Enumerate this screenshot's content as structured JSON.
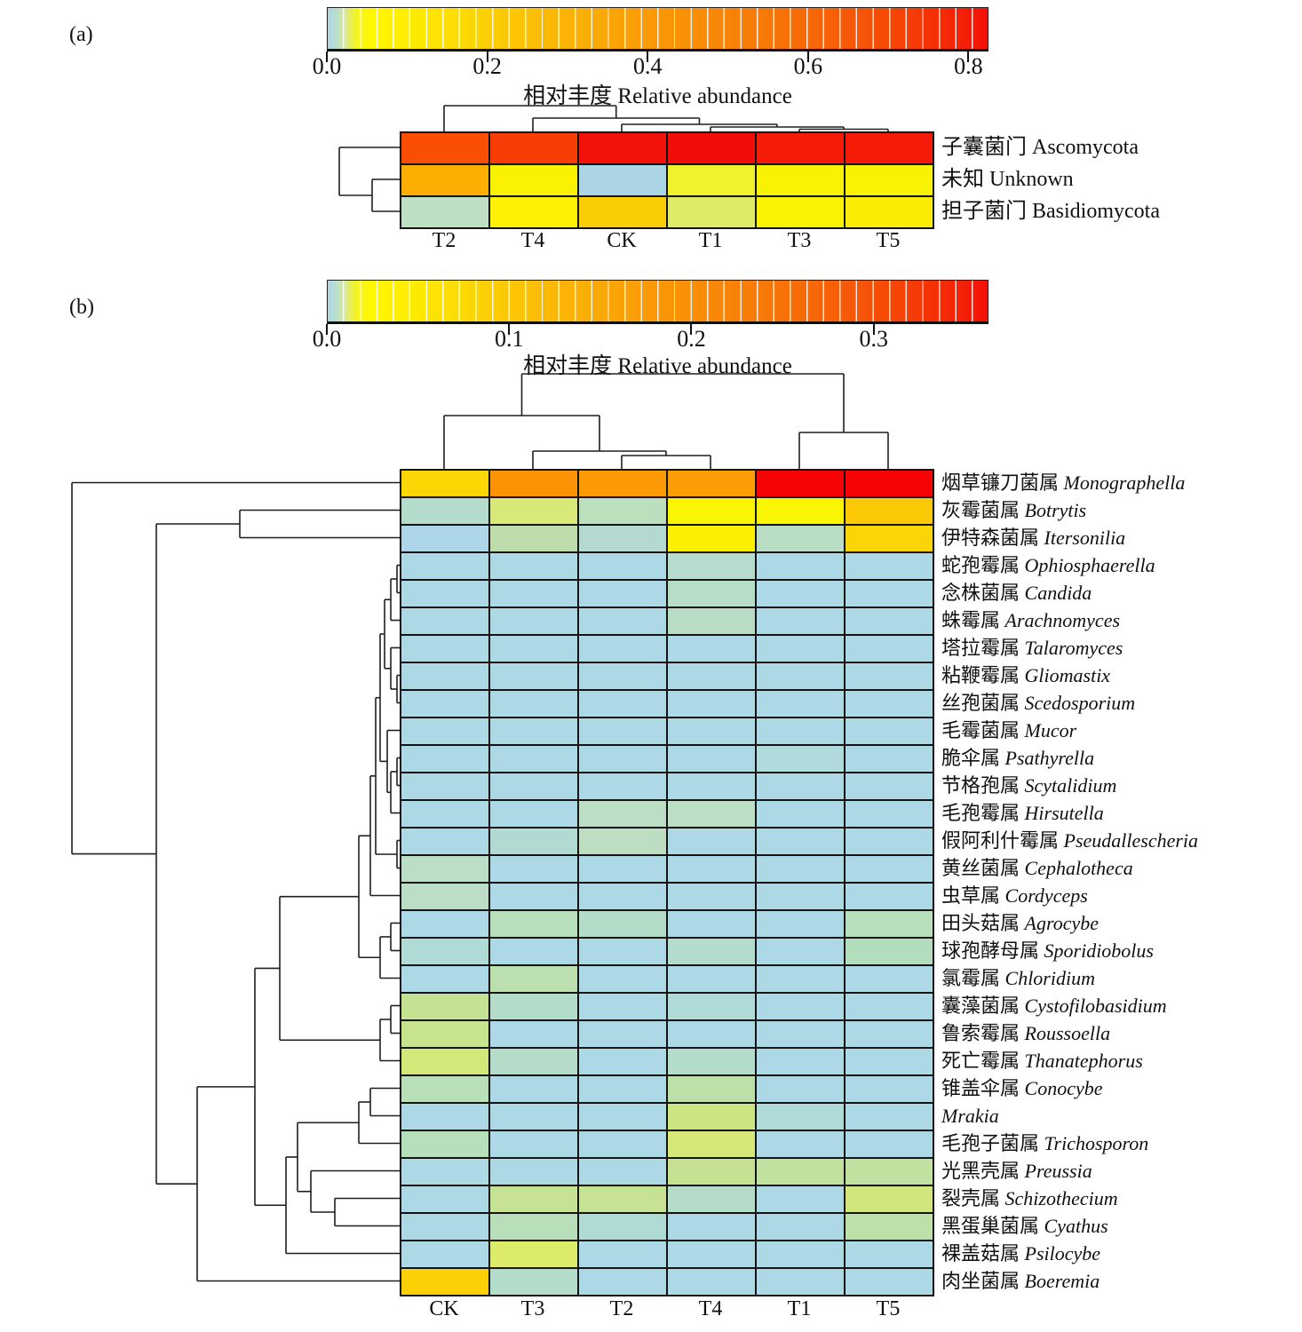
{
  "figure": {
    "colorbar_title": "相对丰度 Relative abundance"
  },
  "chart_data": [
    {
      "id": "a",
      "type": "heatmap",
      "panel_label": "(a)",
      "title": "相对丰度 Relative abundance",
      "legend_position": "top",
      "grid": false,
      "colorbar": {
        "ticks": [
          "0.0",
          "0.2",
          "0.4",
          "0.6",
          "0.8"
        ],
        "tick_values": [
          0,
          0.2,
          0.4,
          0.6,
          0.8
        ],
        "vmin": 0,
        "vmax": 0.825,
        "gradient": [
          "#A9D6E5",
          "#FFF800",
          "#FCD005",
          "#FAA307",
          "#F87D08",
          "#F41106"
        ]
      },
      "columns": [
        "T2",
        "T4",
        "CK",
        "T1",
        "T3",
        "T5"
      ],
      "rows": [
        {
          "zh": "子囊菌门",
          "latin": "Ascomycota",
          "italic": false
        },
        {
          "zh": "未知",
          "latin": "Unknown",
          "italic": false
        },
        {
          "zh": "担子菌门",
          "latin": "Basidiomycota",
          "italic": false
        }
      ],
      "values": [
        [
          0.67,
          0.7,
          0.8,
          0.81,
          0.78,
          0.78
        ],
        [
          0.33,
          0.12,
          0.0,
          0.09,
          0.12,
          0.12
        ],
        [
          0.01,
          0.12,
          0.25,
          0.06,
          0.12,
          0.13
        ]
      ],
      "cell_colors": [
        [
          "#FA4E04",
          "#F93D06",
          "#F31207",
          "#F20D08",
          "#F41C06",
          "#F41C06"
        ],
        [
          "#FCAE03",
          "#FBF201",
          "#ABD5E5",
          "#EFF22D",
          "#FAF203",
          "#FAF203"
        ],
        [
          "#BEDFC2",
          "#FCF201",
          "#FBCD04",
          "#DFEA69",
          "#FBF203",
          "#FBEC06"
        ]
      ]
    },
    {
      "id": "b",
      "type": "heatmap",
      "panel_label": "(b)",
      "title": "相对丰度 Relative abundance",
      "legend_position": "top",
      "grid": false,
      "colorbar": {
        "ticks": [
          "0.0",
          "0.1",
          "0.2",
          "0.3"
        ],
        "tick_values": [
          0,
          0.1,
          0.2,
          0.3
        ],
        "vmin": 0,
        "vmax": 0.363,
        "gradient": [
          "#A9D6E5",
          "#FFF800",
          "#FCD005",
          "#FAA307",
          "#F87D08",
          "#F41106"
        ]
      },
      "columns": [
        "CK",
        "T3",
        "T2",
        "T4",
        "T1",
        "T5"
      ],
      "rows": [
        {
          "zh": "烟草镰刀菌属",
          "latin": "Monographella",
          "italic": true
        },
        {
          "zh": "灰霉菌属",
          "latin": "Botrytis",
          "italic": true
        },
        {
          "zh": "伊特森菌属",
          "latin": "Itersonilia",
          "italic": true
        },
        {
          "zh": "蛇孢霉属",
          "latin": "Ophiosphaerella",
          "italic": true
        },
        {
          "zh": "念株菌属",
          "latin": "Candida",
          "italic": true
        },
        {
          "zh": "蛛霉属",
          "latin": "Arachnomyces",
          "italic": true
        },
        {
          "zh": "塔拉霉属",
          "latin": "Talaromyces",
          "italic": true
        },
        {
          "zh": "粘鞭霉属",
          "latin": "Gliomastix",
          "italic": true
        },
        {
          "zh": "丝孢菌属",
          "latin": "Scedosporium",
          "italic": true
        },
        {
          "zh": "毛霉菌属",
          "latin": "Mucor",
          "italic": true
        },
        {
          "zh": "脆伞属",
          "latin": "Psathyrella",
          "italic": true
        },
        {
          "zh": "节格孢属",
          "latin": "Scytalidium",
          "italic": true
        },
        {
          "zh": "毛孢霉属",
          "latin": "Hirsutella",
          "italic": true
        },
        {
          "zh": "假阿利什霉属",
          "latin": "Pseudallescheria",
          "italic": true
        },
        {
          "zh": "黄丝菌属",
          "latin": "Cephalotheca",
          "italic": true
        },
        {
          "zh": "虫草属",
          "latin": "Cordyceps",
          "italic": true
        },
        {
          "zh": "田头菇属",
          "latin": "Agrocybe",
          "italic": true
        },
        {
          "zh": "球孢酵母属",
          "latin": "Sporidiobolus",
          "italic": true
        },
        {
          "zh": "氯霉属",
          "latin": "Chloridium",
          "italic": true
        },
        {
          "zh": "囊藻菌属",
          "latin": "Cystofilobasidium",
          "italic": true
        },
        {
          "zh": "鲁索霉属",
          "latin": "Roussoella",
          "italic": true
        },
        {
          "zh": "死亡霉属",
          "latin": "Thanatephorus",
          "italic": true
        },
        {
          "zh": "锥盖伞属",
          "latin": "Conocybe",
          "italic": true
        },
        {
          "zh": "",
          "latin": "Mrakia",
          "italic": true
        },
        {
          "zh": "毛孢子菌属",
          "latin": "Trichosporon",
          "italic": true
        },
        {
          "zh": "光黑壳属",
          "latin": "Preussia",
          "italic": true
        },
        {
          "zh": "裂壳属",
          "latin": "Schizothecium",
          "italic": true
        },
        {
          "zh": "黑蛋巢菌属",
          "latin": "Cyathus",
          "italic": true
        },
        {
          "zh": "裸盖菇属",
          "latin": "Psilocybe",
          "italic": true
        },
        {
          "zh": "肉坐菌属",
          "latin": "Boeremia",
          "italic": true
        }
      ],
      "values": [
        [
          0.08,
          0.16,
          0.15,
          0.15,
          0.34,
          0.34
        ],
        [
          0.004,
          0.025,
          0.007,
          0.045,
          0.045,
          0.09
        ],
        [
          0.0,
          0.01,
          0.004,
          0.042,
          0.006,
          0.08
        ],
        [
          0,
          0,
          0,
          0.005,
          0,
          0
        ],
        [
          0,
          0,
          0,
          0.006,
          0,
          0
        ],
        [
          0,
          0,
          0,
          0.006,
          0,
          0
        ],
        [
          0,
          0,
          0,
          0,
          0,
          0
        ],
        [
          0,
          0,
          0,
          0,
          0,
          0
        ],
        [
          0,
          0,
          0,
          0,
          0,
          0
        ],
        [
          0,
          0,
          0,
          0,
          0,
          0
        ],
        [
          0,
          0,
          0,
          0,
          0.002,
          0
        ],
        [
          0,
          0,
          0,
          0,
          0,
          0
        ],
        [
          0,
          0,
          0.007,
          0.007,
          0,
          0
        ],
        [
          0,
          0.004,
          0.007,
          0,
          0,
          0
        ],
        [
          0.007,
          0,
          0,
          0,
          0,
          0
        ],
        [
          0.007,
          0,
          0,
          0,
          0,
          0
        ],
        [
          0,
          0.008,
          0.005,
          0,
          0,
          0.008
        ],
        [
          0.002,
          0,
          0,
          0.004,
          0,
          0.009
        ],
        [
          0,
          0.01,
          0,
          0,
          0,
          0
        ],
        [
          0.015,
          0.004,
          0,
          0.002,
          0,
          0
        ],
        [
          0.016,
          0,
          0,
          0,
          0,
          0
        ],
        [
          0.024,
          0.005,
          0,
          0.004,
          0,
          0
        ],
        [
          0.008,
          0,
          0,
          0.012,
          0,
          0
        ],
        [
          0,
          0,
          0,
          0.02,
          0.002,
          0
        ],
        [
          0.008,
          0,
          0,
          0.026,
          0,
          0
        ],
        [
          0,
          0,
          0,
          0.015,
          0.012,
          0.012
        ],
        [
          0,
          0.016,
          0.016,
          0.005,
          0,
          0.025
        ],
        [
          0,
          0.008,
          0.003,
          0,
          0,
          0.012
        ],
        [
          0,
          0.03,
          0,
          0,
          0,
          0
        ],
        [
          0.085,
          0.004,
          0,
          0,
          0,
          0
        ]
      ],
      "cell_colors": [
        [
          "#FCD705",
          "#FC9305",
          "#FC9B05",
          "#FB9E05",
          "#F60405",
          "#F60405"
        ],
        [
          "#B3DCCB",
          "#D8E977",
          "#BCDFBC",
          "#FAF500",
          "#FAF500",
          "#FBC905"
        ],
        [
          "#ADD6E8",
          "#BFDCAC",
          "#B3D9D0",
          "#FAF000",
          "#B8DDC2",
          "#FBD505"
        ],
        [
          "#ADD8E6",
          "#ADD8E6",
          "#ADD8E6",
          "#B5DCCC",
          "#ADD8E6",
          "#ADD8E6"
        ],
        [
          "#ADD8E6",
          "#ADD8E6",
          "#ADD8E6",
          "#B8DDC6",
          "#ADD8E6",
          "#ADD8E6"
        ],
        [
          "#ADD8E6",
          "#ADD8E6",
          "#ADD8E6",
          "#B8DDC4",
          "#ADD8E6",
          "#ADD8E6"
        ],
        [
          "#ADD8E6",
          "#ADD8E6",
          "#ADD8E6",
          "#ADD8E6",
          "#ADD8E6",
          "#ADD8E6"
        ],
        [
          "#ADD8E6",
          "#ADD8E6",
          "#ADD8E6",
          "#ADD8E6",
          "#ADD8E6",
          "#ADD8E6"
        ],
        [
          "#ADD8E6",
          "#ADD8E6",
          "#ADD8E6",
          "#ADD8E6",
          "#ADD8E6",
          "#ADD8E6"
        ],
        [
          "#ADD8E6",
          "#ADD8E6",
          "#ADD8E6",
          "#ADD8E6",
          "#ADD8E6",
          "#ADD8E6"
        ],
        [
          "#ADD8E6",
          "#ADD8E6",
          "#ADD8E6",
          "#ADD8E6",
          "#B0DADC",
          "#ADD8E6"
        ],
        [
          "#ADD8E6",
          "#ADD8E6",
          "#ADD8E6",
          "#ADD8E6",
          "#ADD8E6",
          "#ADD8E6"
        ],
        [
          "#ADD8E6",
          "#ADD8E6",
          "#BCDEC4",
          "#BCDEC4",
          "#ADD8E6",
          "#ADD8E6"
        ],
        [
          "#ADD8E6",
          "#B3DAD2",
          "#BDDEC0",
          "#ADD8E6",
          "#ADD8E6",
          "#ADD8E6"
        ],
        [
          "#BDDEC6",
          "#ADD8E6",
          "#ADD8E6",
          "#ADD8E6",
          "#ADD8E6",
          "#ADD8E6"
        ],
        [
          "#BDDEC6",
          "#ADD8E6",
          "#ADD8E6",
          "#ADD8E6",
          "#ADD8E6",
          "#ADD8E6"
        ],
        [
          "#ADD8E6",
          "#B7DFBB",
          "#B3DCC9",
          "#ADD8E6",
          "#ADD8E6",
          "#B7DFBB"
        ],
        [
          "#B0DAD6",
          "#ADD8E6",
          "#ADD8E6",
          "#B3DCCD",
          "#ADD8E6",
          "#B3DEBE"
        ],
        [
          "#ADD8E6",
          "#BBDFAF",
          "#ADD8E6",
          "#ADD8E6",
          "#ADD8E6",
          "#ADD8E6"
        ],
        [
          "#C3E393",
          "#B3DCCB",
          "#ADD8E6",
          "#B0DAD8",
          "#ADD8E6",
          "#ADD8E6"
        ],
        [
          "#C6E38D",
          "#ADD8E6",
          "#ADD8E6",
          "#ADD8E6",
          "#ADD8E6",
          "#ADD8E6"
        ],
        [
          "#D2E878",
          "#B5DCC8",
          "#ADD8E6",
          "#B3DCCB",
          "#ADD8E6",
          "#ADD8E6"
        ],
        [
          "#B9DFB9",
          "#ADD8E6",
          "#ADD8E6",
          "#BCE0A8",
          "#ADD8E6",
          "#ADD8E6"
        ],
        [
          "#ADD8E6",
          "#ADD8E6",
          "#ADD8E6",
          "#CBE583",
          "#B0DAD8",
          "#ADD8E6"
        ],
        [
          "#B7DFBC",
          "#ADD8E6",
          "#ADD8E6",
          "#D5E878",
          "#ADD8E6",
          "#ADD8E6"
        ],
        [
          "#ADD8E6",
          "#ADD8E6",
          "#ADD8E6",
          "#C5E293",
          "#C0E19F",
          "#C0E19F"
        ],
        [
          "#ADD8E6",
          "#C6E295",
          "#C6E295",
          "#B5DCC8",
          "#ADD8E6",
          "#D2E67E"
        ],
        [
          "#ADD8E6",
          "#B9DFBA",
          "#B0DAD4",
          "#ADD8E6",
          "#ADD8E6",
          "#BDE0A8"
        ],
        [
          "#ADD8E6",
          "#DDEB6A",
          "#ADD8E6",
          "#ADD8E6",
          "#ADD8E6",
          "#ADD8E6"
        ],
        [
          "#FBD105",
          "#B3DCCB",
          "#ADD8E6",
          "#ADD8E6",
          "#ADD8E6",
          "#ADD8E6"
        ]
      ]
    }
  ]
}
